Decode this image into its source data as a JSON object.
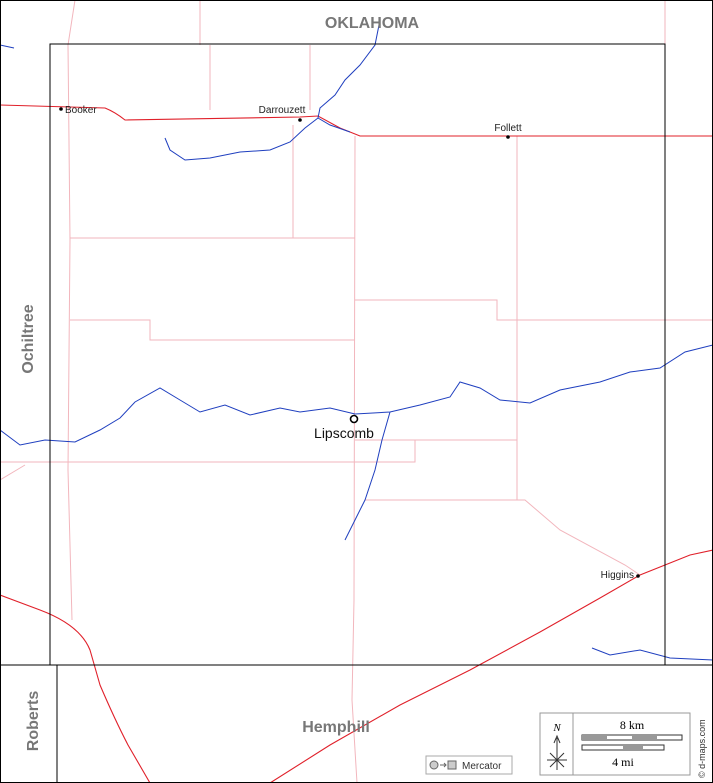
{
  "neighbors": [
    "OKLAHOMA",
    "Ochiltree",
    "Roberts",
    "Hemphill"
  ],
  "cities": [
    "Booker",
    "Darrouzett",
    "Follett",
    "Lipscomb",
    "Higgins"
  ],
  "north": "N",
  "scale": {
    "metric": "8 km",
    "imperial": "4 mi"
  },
  "projection": "Mercator",
  "credit": "© d-maps.com"
}
